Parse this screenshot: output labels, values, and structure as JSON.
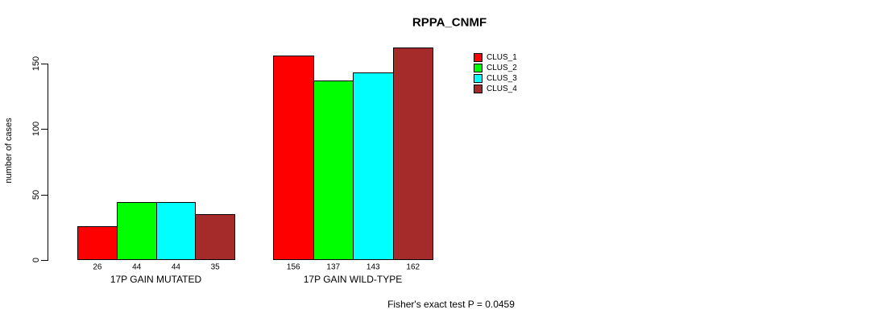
{
  "chart_data": {
    "type": "bar",
    "title": "RPPA_CNMF",
    "xlabel": "",
    "ylabel": "number of cases",
    "ylim": [
      0,
      162
    ],
    "yticks": [
      0,
      50,
      100,
      150
    ],
    "grid": false,
    "legend_position": "top-right",
    "categories": [
      "17P GAIN MUTATED",
      "17P GAIN WILD-TYPE"
    ],
    "series": [
      {
        "name": "CLUS_1",
        "color": "#ff0000",
        "values": [
          26,
          156
        ]
      },
      {
        "name": "CLUS_2",
        "color": "#00ff00",
        "values": [
          44,
          137
        ]
      },
      {
        "name": "CLUS_3",
        "color": "#00ffff",
        "values": [
          44,
          143
        ]
      },
      {
        "name": "CLUS_4",
        "color": "#a52a2a",
        "values": [
          35,
          162
        ]
      }
    ],
    "bar_value_labels": [
      [
        26,
        44,
        44,
        35
      ],
      [
        156,
        137,
        143,
        162
      ]
    ],
    "annotation": "Fisher's exact test P = 0.0459"
  }
}
